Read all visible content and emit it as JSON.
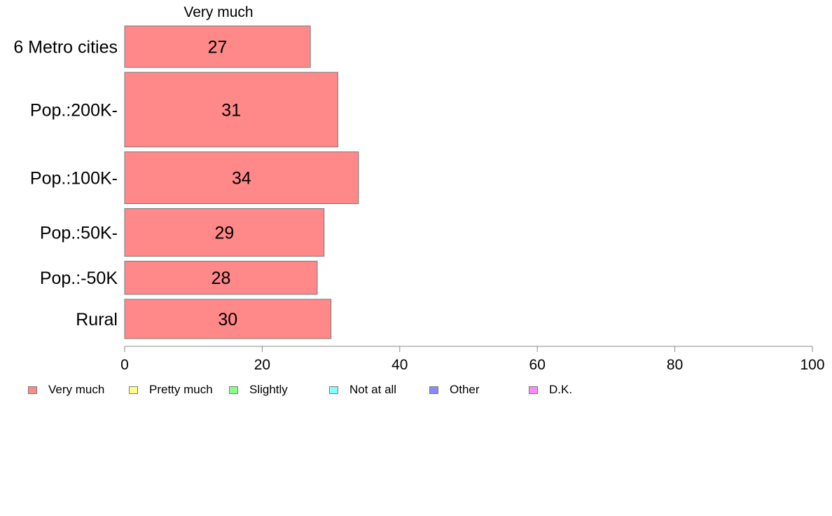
{
  "chart_data": {
    "type": "bar",
    "orientation": "horizontal",
    "title": "",
    "series_title": "Very much",
    "categories": [
      "6 Metro cities",
      "Pop.:200K-",
      "Pop.:100K-",
      "Pop.:50K-",
      "Pop.:-50K",
      "Rural"
    ],
    "category_weights": [
      1.0,
      1.8,
      1.25,
      1.15,
      0.8,
      0.95
    ],
    "series": [
      {
        "name": "Very much",
        "values": [
          27,
          31,
          34,
          29,
          28,
          30
        ],
        "color": "#ff8888"
      }
    ],
    "data_labels": [
      "27",
      "31",
      "34",
      "29",
      "28",
      "30"
    ],
    "xlim": [
      0,
      100
    ],
    "xticks": [
      0,
      20,
      40,
      60,
      80,
      100
    ],
    "xtick_labels": [
      "0",
      "20",
      "40",
      "60",
      "80",
      "100"
    ],
    "xlabel": "",
    "ylabel": "",
    "grid": false,
    "legend_position": "bottom-left",
    "legend": [
      {
        "label": "Very much",
        "color": "#ff8888"
      },
      {
        "label": "Pretty much",
        "color": "#ffff88"
      },
      {
        "label": "Slightly",
        "color": "#88ff88"
      },
      {
        "label": "Not at all",
        "color": "#88ffff"
      },
      {
        "label": "Other",
        "color": "#8888ff"
      },
      {
        "label": "D.K.",
        "color": "#ff88ff"
      }
    ]
  }
}
